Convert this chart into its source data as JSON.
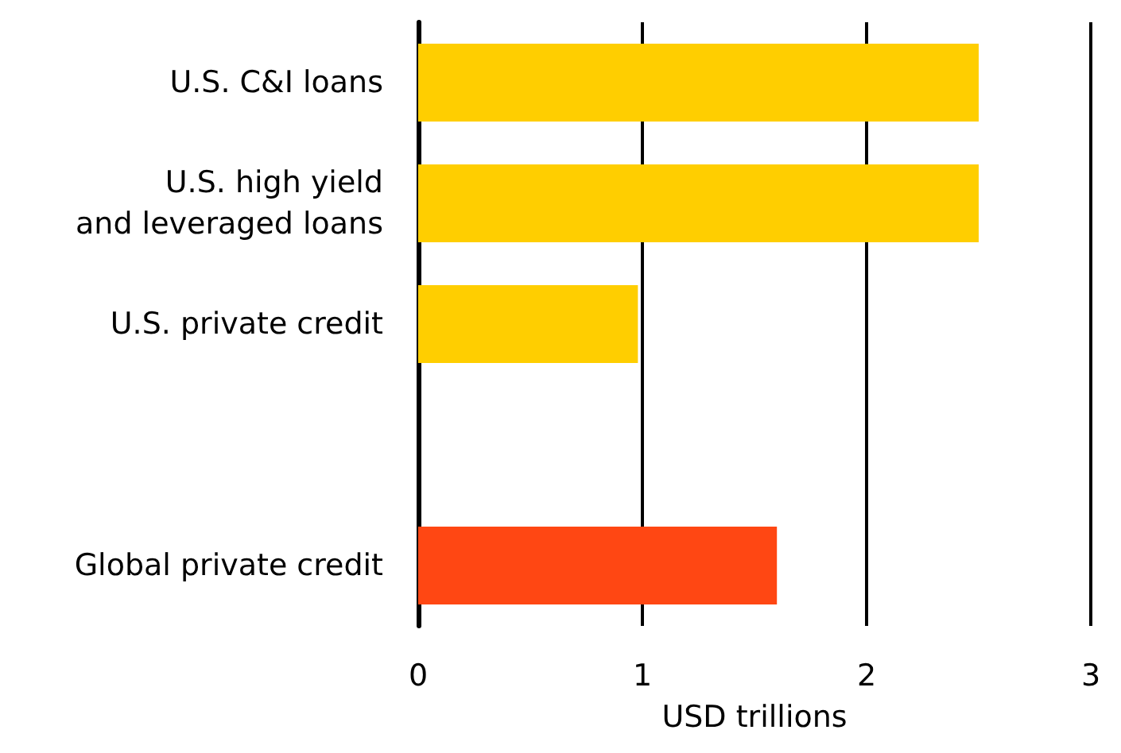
{
  "chart_data": {
    "type": "bar",
    "orientation": "horizontal",
    "xlabel": "USD trillions",
    "categories": [
      "U.S. C&I loans",
      "U.S. high yield\nand leveraged loans",
      "U.S. private credit",
      null,
      "Global private credit"
    ],
    "values": [
      2.5,
      2.5,
      0.98,
      null,
      1.6
    ],
    "colors": [
      "#ffce00",
      "#ffce00",
      "#ffce00",
      null,
      "#ff4713"
    ],
    "xlim": [
      0,
      3
    ],
    "xticks": [
      0,
      1,
      2,
      3
    ],
    "grid": "x"
  }
}
